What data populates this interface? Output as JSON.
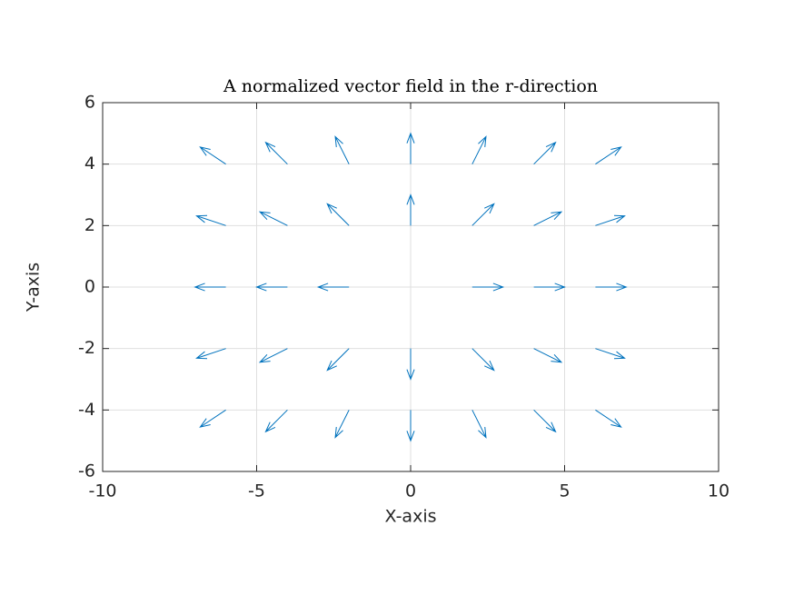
{
  "chart_data": {
    "type": "quiver",
    "title": "A normalized vector field in the r-direction",
    "xlabel": "X-axis",
    "ylabel": "Y-axis",
    "xlim": [
      -10,
      10
    ],
    "ylim": [
      -6,
      6
    ],
    "xticks": [
      -10,
      -5,
      0,
      5,
      10
    ],
    "yticks": [
      -6,
      -4,
      -2,
      0,
      2,
      4,
      6
    ],
    "grid": true,
    "color": "#0072bd",
    "x": [
      -6,
      -4,
      -2,
      0,
      2,
      4,
      6,
      -6,
      -4,
      -2,
      0,
      2,
      4,
      6,
      -6,
      -4,
      -2,
      2,
      4,
      6,
      -6,
      -4,
      -2,
      0,
      2,
      4,
      6,
      -6,
      -4,
      -2,
      0,
      2,
      4,
      6
    ],
    "y": [
      4,
      4,
      4,
      4,
      4,
      4,
      4,
      2,
      2,
      2,
      2,
      2,
      2,
      2,
      0,
      0,
      0,
      0,
      0,
      0,
      -2,
      -2,
      -2,
      -2,
      -2,
      -2,
      -2,
      -4,
      -4,
      -4,
      -4,
      -4,
      -4,
      -4
    ],
    "u": [
      -0.832,
      -0.707,
      -0.447,
      0,
      0.447,
      0.707,
      0.832,
      -0.949,
      -0.894,
      -0.707,
      0,
      0.707,
      0.894,
      0.949,
      -1,
      -1,
      -1,
      1,
      1,
      1,
      -0.949,
      -0.894,
      -0.707,
      0,
      0.707,
      0.894,
      0.949,
      -0.832,
      -0.707,
      -0.447,
      0,
      0.447,
      0.707,
      0.832
    ],
    "v": [
      0.555,
      0.707,
      0.894,
      1,
      0.894,
      0.707,
      0.555,
      0.316,
      0.447,
      0.707,
      1,
      0.707,
      0.447,
      0.316,
      0,
      0,
      0,
      0,
      0,
      0,
      -0.316,
      -0.447,
      -0.707,
      -1,
      -0.707,
      -0.447,
      -0.316,
      -0.555,
      -0.707,
      -0.894,
      -1,
      -0.894,
      -0.707,
      -0.555
    ]
  }
}
